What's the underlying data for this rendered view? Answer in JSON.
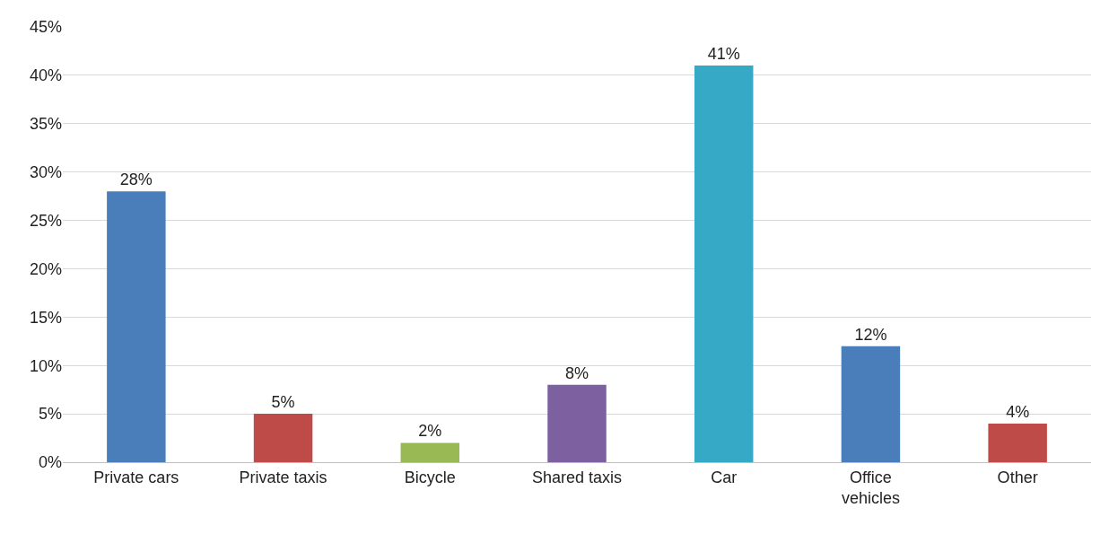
{
  "chart_data": {
    "type": "bar",
    "categories": [
      "Private cars",
      "Private taxis",
      "Bicycle",
      "Shared taxis",
      "Car",
      "Office vehicles",
      "Other"
    ],
    "values": [
      28,
      5,
      2,
      8,
      41,
      12,
      4
    ],
    "colors": [
      "#4a7ebb",
      "#be4b48",
      "#98b954",
      "#7d60a0",
      "#35a9c6",
      "#4a7ebb",
      "#be4b48"
    ],
    "value_labels": [
      "28%",
      "5%",
      "2%",
      "8%",
      "41%",
      "12%",
      "4%"
    ],
    "ylim": [
      0,
      45
    ],
    "yticks": [
      {
        "value": 0,
        "label": "0%"
      },
      {
        "value": 5,
        "label": "5%"
      },
      {
        "value": 10,
        "label": "10%"
      },
      {
        "value": 15,
        "label": "15%"
      },
      {
        "value": 20,
        "label": "20%"
      },
      {
        "value": 25,
        "label": "25%"
      },
      {
        "value": 30,
        "label": "30%"
      },
      {
        "value": 35,
        "label": "35%"
      },
      {
        "value": 40,
        "label": "40%"
      },
      {
        "value": 45,
        "label": "45%"
      }
    ],
    "grid": "y"
  }
}
